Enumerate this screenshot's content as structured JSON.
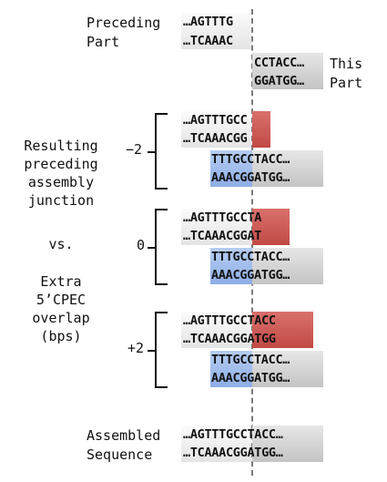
{
  "header": {
    "preceding_label_1": "Preceding",
    "preceding_label_2": "Part",
    "preceding_top": "…AGTTTG",
    "preceding_bottom": "…TCAAAC",
    "this_top": "CCTACC…",
    "this_bottom": "GGATGG…",
    "this_label_1": "This",
    "this_label_2": "Part"
  },
  "side_label": {
    "line1": "Resulting",
    "line2": "preceding",
    "line3": "assembly",
    "line4": "junction",
    "vs": "vs.",
    "line5": "Extra",
    "line6": "5’CPEC",
    "line7": "overlap",
    "line8": "(bps)"
  },
  "cases": [
    {
      "overlap": "−2",
      "prev_top": "…AGTTTG",
      "prev_top_ext": "CC",
      "prev_bot": "…TCAAAC",
      "prev_bot_ext": "GG",
      "next_top_ext": "TTTG",
      "next_top": "CCTACC…",
      "next_bot_ext": "AAAC",
      "next_bot": "GGATGG…"
    },
    {
      "overlap": "0",
      "prev_top": "…AGTTTG",
      "prev_top_ext": "CCTA",
      "prev_bot": "…TCAAAC",
      "prev_bot_ext": "GGAT",
      "next_top_ext": "TTTG",
      "next_top": "CCTACC…",
      "next_bot_ext": "AAAC",
      "next_bot": "GGATGG…"
    },
    {
      "overlap": "+2",
      "prev_top": "…AGTTTG",
      "prev_top_ext": "CCTACC",
      "prev_bot": "…TCAAAC",
      "prev_bot_ext": "GGATGG",
      "next_top_ext": "TTTG",
      "next_top": "CCTACC…",
      "next_bot_ext": "AAAC",
      "next_bot": "GGATGG…"
    }
  ],
  "assembled": {
    "label_1": "Assembled",
    "label_2": "Sequence",
    "top_left": "…AGTTTG",
    "top_right": "CCTACC…",
    "bottom_left": "…TCAAAC",
    "bottom_right": "GGATGG…"
  },
  "colors": {
    "extension": "#c9534e",
    "overlap_prefix": "#9db8ea",
    "part_gray": "#cfcfcf",
    "junction_line": "#7a7a7a"
  }
}
